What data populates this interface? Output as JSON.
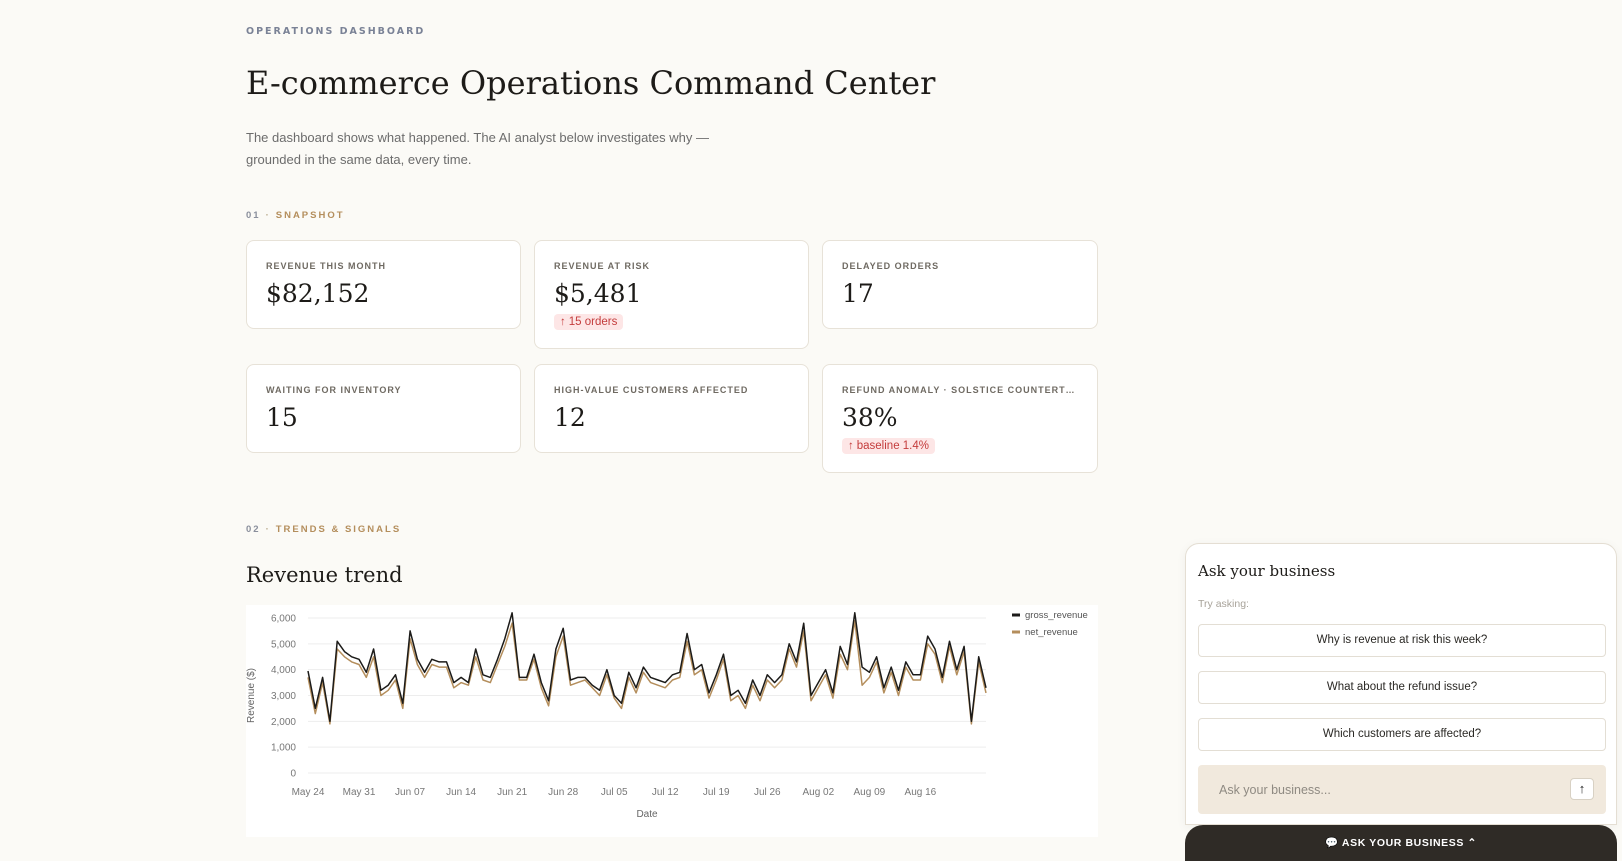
{
  "header": {
    "eyebrow": "OPERATIONS DASHBOARD",
    "title": "E-commerce Operations Command Center",
    "subtitle": "The dashboard shows what happened. The AI analyst below investigates why — grounded in the same data, every time."
  },
  "sections": {
    "snapshot": {
      "num": "01",
      "sep": "·",
      "label": "SNAPSHOT"
    },
    "trends": {
      "num": "02",
      "sep": "·",
      "label": "TRENDS & SIGNALS"
    }
  },
  "kpis": [
    {
      "label": "REVENUE THIS MONTH",
      "value": "$82,152"
    },
    {
      "label": "REVENUE AT RISK",
      "value": "$5,481",
      "badge": "15 orders",
      "badge_arrow": "↑"
    },
    {
      "label": "DELAYED ORDERS",
      "value": "17"
    },
    {
      "label": "WAITING FOR INVENTORY",
      "value": "15"
    },
    {
      "label": "HIGH-VALUE CUSTOMERS AFFECTED",
      "value": "12"
    },
    {
      "label": "REFUND ANOMALY · SOLSTICE COUNTERTOP B...",
      "value": "38%",
      "badge": "baseline 1.4%",
      "badge_arrow": "↑"
    }
  ],
  "revenue_title": "Revenue trend",
  "chart_data": {
    "type": "line",
    "title": "",
    "xlabel": "Date",
    "ylabel": "Revenue ($)",
    "ylim": [
      0,
      6000
    ],
    "yticks": [
      "0",
      "1,000",
      "2,000",
      "3,000",
      "4,000",
      "5,000",
      "6,000"
    ],
    "ytick_values": [
      0,
      1000,
      2000,
      3000,
      4000,
      5000,
      6000
    ],
    "xticks": [
      "May 24",
      "May 31",
      "Jun 07",
      "Jun 14",
      "Jun 21",
      "Jun 28",
      "Jul 05",
      "Jul 12",
      "Jul 19",
      "Jul 26",
      "Aug 02",
      "Aug 09",
      "Aug 16"
    ],
    "xtick_index": [
      0,
      7,
      14,
      21,
      28,
      35,
      42,
      49,
      56,
      63,
      70,
      77,
      84
    ],
    "grid": true,
    "legend_position": "top-right",
    "series": [
      {
        "name": "gross_revenue",
        "color": "#1c1b19",
        "values": [
          3950,
          2500,
          3700,
          2000,
          5100,
          4700,
          4500,
          4400,
          3900,
          4800,
          3200,
          3400,
          3800,
          2700,
          5500,
          4400,
          3900,
          4400,
          4300,
          4300,
          3500,
          3700,
          3500,
          4800,
          3800,
          3700,
          4400,
          5200,
          6200,
          3700,
          3700,
          4600,
          3500,
          2800,
          4800,
          5600,
          3600,
          3700,
          3700,
          3400,
          3200,
          4000,
          3000,
          2700,
          3900,
          3300,
          4100,
          3700,
          3600,
          3500,
          3800,
          3900,
          5400,
          4000,
          4200,
          3100,
          3800,
          4600,
          3000,
          3200,
          2700,
          3600,
          3000,
          3800,
          3500,
          3800,
          5000,
          4300,
          5800,
          3000,
          3500,
          4000,
          3100,
          4900,
          4200,
          6200,
          4100,
          3900,
          4500,
          3300,
          4100,
          3200,
          4300,
          3800,
          3800,
          5300,
          4800,
          3700,
          5100,
          4000,
          4900,
          2000,
          4500,
          3300
        ]
      },
      {
        "name": "net_revenue",
        "color": "#b48e5c",
        "values": [
          3700,
          2300,
          3500,
          1900,
          4800,
          4500,
          4300,
          4200,
          3700,
          4500,
          3000,
          3200,
          3600,
          2500,
          5200,
          4200,
          3700,
          4200,
          4100,
          4100,
          3300,
          3500,
          3400,
          4500,
          3600,
          3500,
          4200,
          4900,
          5800,
          3600,
          3600,
          4400,
          3300,
          2600,
          4500,
          5300,
          3400,
          3500,
          3600,
          3300,
          3000,
          3800,
          2900,
          2500,
          3700,
          3100,
          3900,
          3500,
          3400,
          3300,
          3600,
          3700,
          5100,
          3800,
          4000,
          2900,
          3600,
          4400,
          2800,
          3000,
          2500,
          3400,
          2800,
          3600,
          3300,
          3600,
          4800,
          4100,
          5500,
          2800,
          3300,
          3800,
          2900,
          4600,
          4000,
          5900,
          3400,
          3700,
          4300,
          3100,
          3900,
          3000,
          4100,
          3600,
          3600,
          5000,
          4600,
          3500,
          4900,
          3800,
          4700,
          1900,
          4300,
          3100
        ]
      }
    ]
  },
  "chat": {
    "title": "Ask your business",
    "try_label": "Try asking:",
    "suggestions": [
      "Why is revenue at risk this week?",
      "What about the refund issue?",
      "Which customers are affected?"
    ],
    "input_placeholder": "Ask your business...",
    "send_icon": "↑",
    "toggle_label": "💬 ASK YOUR BUSINESS ⌃"
  },
  "colors": {
    "accent": "#b48e5c",
    "alert_bg": "#fde6e6",
    "alert_text": "#c43c3c",
    "dark": "#2f2b26"
  }
}
